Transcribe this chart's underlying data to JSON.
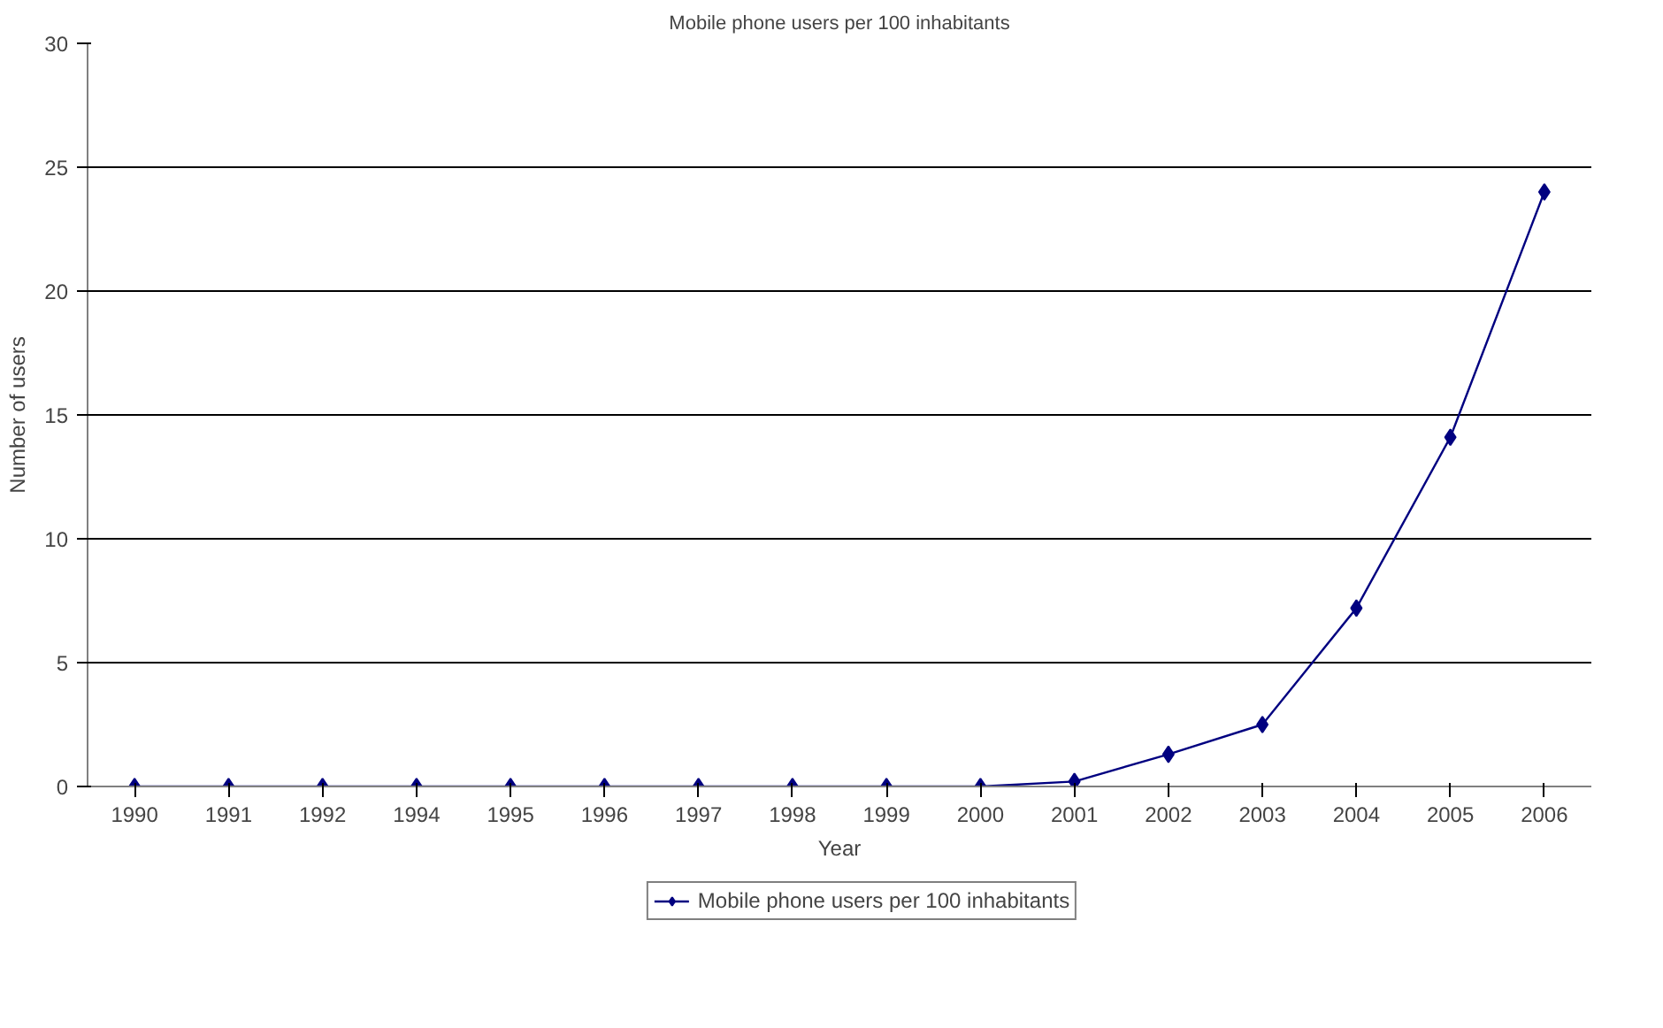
{
  "chart_data": {
    "type": "line",
    "title": "Mobile phone users per 100 inhabitants",
    "xlabel": "Year",
    "ylabel": "Number of users",
    "categories": [
      "1990",
      "1991",
      "1992",
      "1994",
      "1995",
      "1996",
      "1997",
      "1998",
      "1999",
      "2000",
      "2001",
      "2002",
      "2003",
      "2004",
      "2005",
      "2006"
    ],
    "series": [
      {
        "name": "Mobile phone users per 100 inhabitants",
        "color": "#000080",
        "values": [
          0,
          0,
          0,
          0,
          0,
          0,
          0,
          0,
          0,
          0,
          0.2,
          1.3,
          2.5,
          7.2,
          14.1,
          24.0
        ]
      }
    ],
    "ylim": [
      0,
      30
    ],
    "yticks": [
      0,
      5,
      10,
      15,
      20,
      25,
      30
    ],
    "grid": "y",
    "legend": "bottom",
    "marker": "diamond",
    "line_style": "solid"
  }
}
